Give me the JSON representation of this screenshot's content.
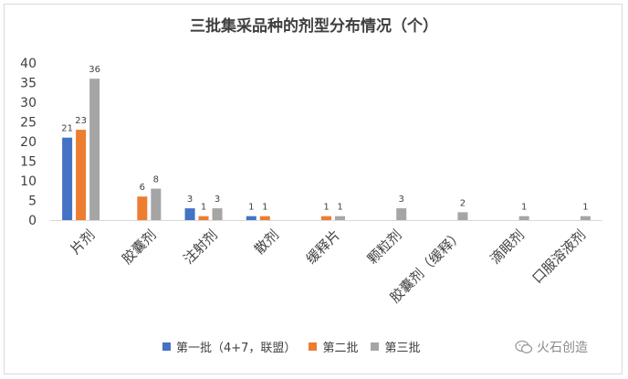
{
  "chart_data": {
    "type": "bar",
    "title": "三批集采品种的剂型分布情况（个）",
    "categories": [
      "片剂",
      "胶囊剂",
      "注射剂",
      "散剂",
      "缓释片",
      "颗粒剂",
      "胶囊剂（缓释）",
      "滴眼剂",
      "口服溶液剂"
    ],
    "series": [
      {
        "name": "第一批（4+7，联盟）",
        "color": "#4472c4",
        "values": [
          21,
          null,
          3,
          1,
          null,
          null,
          null,
          null,
          null
        ]
      },
      {
        "name": "第二批",
        "color": "#ed7d31",
        "values": [
          23,
          6,
          1,
          1,
          1,
          null,
          null,
          null,
          null
        ]
      },
      {
        "name": "第三批",
        "color": "#a5a5a5",
        "values": [
          36,
          8,
          3,
          null,
          1,
          3,
          2,
          1,
          1
        ]
      }
    ],
    "ylim": [
      0,
      40
    ],
    "yticks": [
      0,
      5,
      10,
      15,
      20,
      25,
      30,
      35,
      40
    ],
    "grid": false,
    "legend_position": "bottom"
  },
  "watermark": {
    "text": "火石创造"
  }
}
